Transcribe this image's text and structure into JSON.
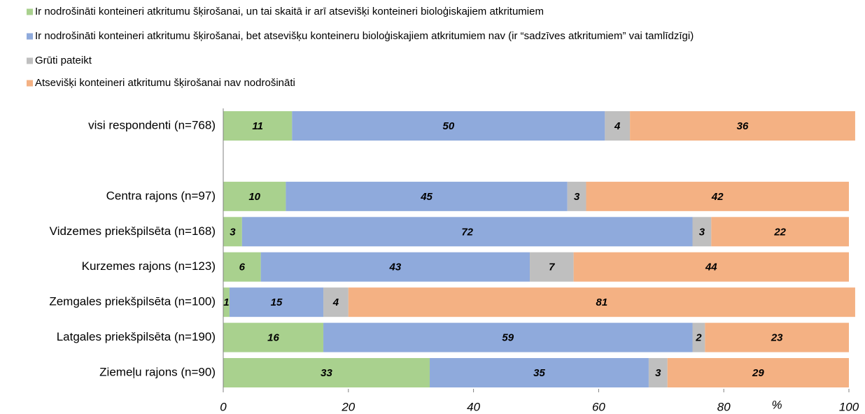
{
  "chart_data": {
    "type": "stacked_barh",
    "categories": [
      "visi respondenti (n=768)",
      null,
      "Centra rajons (n=97)",
      "Vidzemes priekšpilsēta (n=168)",
      "Kurzemes rajons (n=123)",
      "Zemgales priekšpilsēta (n=100)",
      "Latgales priekšpilsēta (n=190)",
      "Ziemeļu rajons (n=90)"
    ],
    "series": [
      {
        "name": "Ir nodrošināti konteineri atkritumu šķirošanai, un tai skaitā ir arī atsevišķi konteineri bioloģiskajiem atkritumiem",
        "color": "#a9d18e",
        "values": [
          11,
          null,
          10,
          3,
          6,
          1,
          16,
          33
        ]
      },
      {
        "name": "Ir nodrošināti konteineri atkritumu šķirošanai, bet atsevišķu konteineru bioloģiskajiem atkritumiem nav (ir “sadzīves atkritumiem” vai tamlīdzīgi)",
        "color": "#8faadc",
        "values": [
          50,
          null,
          45,
          72,
          43,
          15,
          59,
          35
        ]
      },
      {
        "name": "Grūti pateikt",
        "color": "#bfbfbf",
        "values": [
          4,
          null,
          3,
          3,
          7,
          4,
          2,
          3
        ]
      },
      {
        "name": "Atsevišķi konteineri atkritumu šķirošanai nav nodrošināti",
        "color": "#f4b183",
        "values": [
          36,
          null,
          42,
          22,
          44,
          81,
          23,
          29
        ]
      }
    ],
    "xlabel": "%",
    "xlim": [
      0,
      100
    ],
    "xticks": [
      0,
      20,
      40,
      60,
      80,
      100
    ],
    "legend": "top",
    "grid": false
  }
}
